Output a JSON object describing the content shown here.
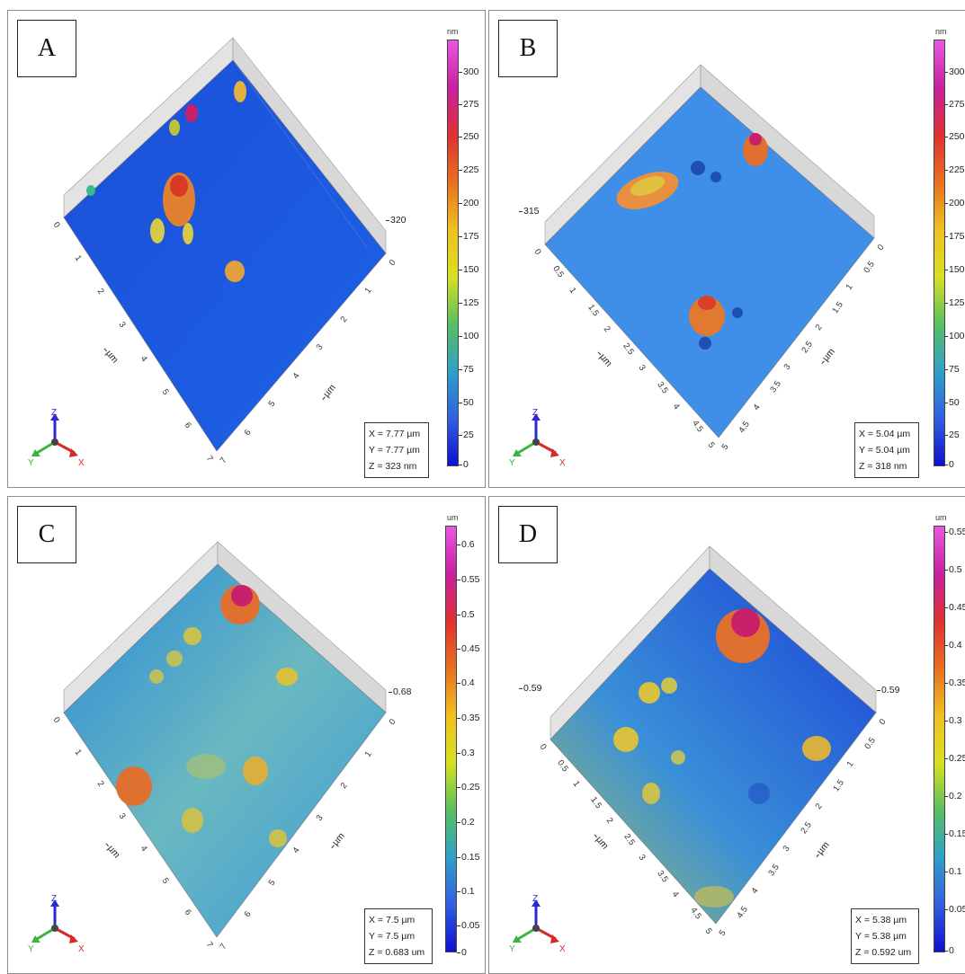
{
  "panels": [
    {
      "label": "A",
      "dims": {
        "x": "X = 7.77 µm",
        "y": "Y = 7.77 µm",
        "z": "Z = 323 nm"
      },
      "scale_unit": "nm",
      "scale_ticks": [
        "300",
        "275",
        "250",
        "225",
        "200",
        "175",
        "150",
        "125",
        "100",
        "75",
        "50",
        "25",
        "0"
      ],
      "z_right": "320",
      "z_left": "",
      "axis_unit": "µm",
      "left_ticks": [
        "0",
        "1",
        "2",
        "3",
        "4",
        "5",
        "6",
        "7"
      ],
      "right_ticks": [
        "0",
        "1",
        "2",
        "3",
        "4",
        "5",
        "6",
        "7"
      ],
      "colors": {
        "surface": "#1a5ae0"
      }
    },
    {
      "label": "B",
      "dims": {
        "x": "X = 5.04 µm",
        "y": "Y = 5.04 µm",
        "z": "Z = 318 nm"
      },
      "scale_unit": "nm",
      "scale_ticks": [
        "300",
        "275",
        "250",
        "225",
        "200",
        "175",
        "150",
        "125",
        "100",
        "75",
        "50",
        "25",
        "0"
      ],
      "z_right": "",
      "z_left": "315",
      "axis_unit": "µm",
      "left_ticks": [
        "0",
        "0.5",
        "1",
        "1.5",
        "2",
        "2.5",
        "3",
        "3.5",
        "4",
        "4.5",
        "5"
      ],
      "right_ticks": [
        "0",
        "0.5",
        "1",
        "1.5",
        "2",
        "2.5",
        "3",
        "3.5",
        "4",
        "4.5",
        "5"
      ],
      "colors": {
        "surface": "#3d8be8"
      }
    },
    {
      "label": "C",
      "dims": {
        "x": "X = 7.5 µm",
        "y": "Y = 7.5 µm",
        "z": "Z = 0.683 um"
      },
      "scale_unit": "um",
      "scale_ticks": [
        "0.6",
        "0.55",
        "0.5",
        "0.45",
        "0.4",
        "0.35",
        "0.3",
        "0.25",
        "0.2",
        "0.15",
        "0.1",
        "0.05",
        "0"
      ],
      "z_right": "0.68",
      "z_left": "",
      "axis_unit": "µm",
      "left_ticks": [
        "0",
        "1",
        "2",
        "3",
        "4",
        "5",
        "6",
        "7"
      ],
      "right_ticks": [
        "0",
        "1",
        "2",
        "3",
        "4",
        "5",
        "6",
        "7"
      ],
      "colors": {
        "surface": "#3aa3d0"
      }
    },
    {
      "label": "D",
      "dims": {
        "x": "X = 5.38 µm",
        "y": "Y = 5.38 µm",
        "z": "Z = 0.592 um"
      },
      "scale_unit": "um",
      "scale_ticks": [
        "0.55",
        "0.5",
        "0.45",
        "0.4",
        "0.35",
        "0.3",
        "0.25",
        "0.2",
        "0.15",
        "0.1",
        "0.05",
        "0"
      ],
      "z_right": "0.59",
      "z_left": "0.59",
      "axis_unit": "µm",
      "left_ticks": [
        "0",
        "0.5",
        "1",
        "1.5",
        "2",
        "2.5",
        "3",
        "3.5",
        "4",
        "4.5",
        "5"
      ],
      "right_ticks": [
        "0",
        "0.5",
        "1",
        "1.5",
        "2",
        "2.5",
        "3",
        "3.5",
        "4",
        "4.5",
        "5"
      ],
      "colors": {
        "surface": "#2a6fe0"
      }
    }
  ],
  "axis_triad": {
    "x": "X",
    "y": "Y",
    "z": "Z",
    "x_color": "#d42a2a",
    "y_color": "#3bb43b",
    "z_color": "#2a2ad4"
  }
}
